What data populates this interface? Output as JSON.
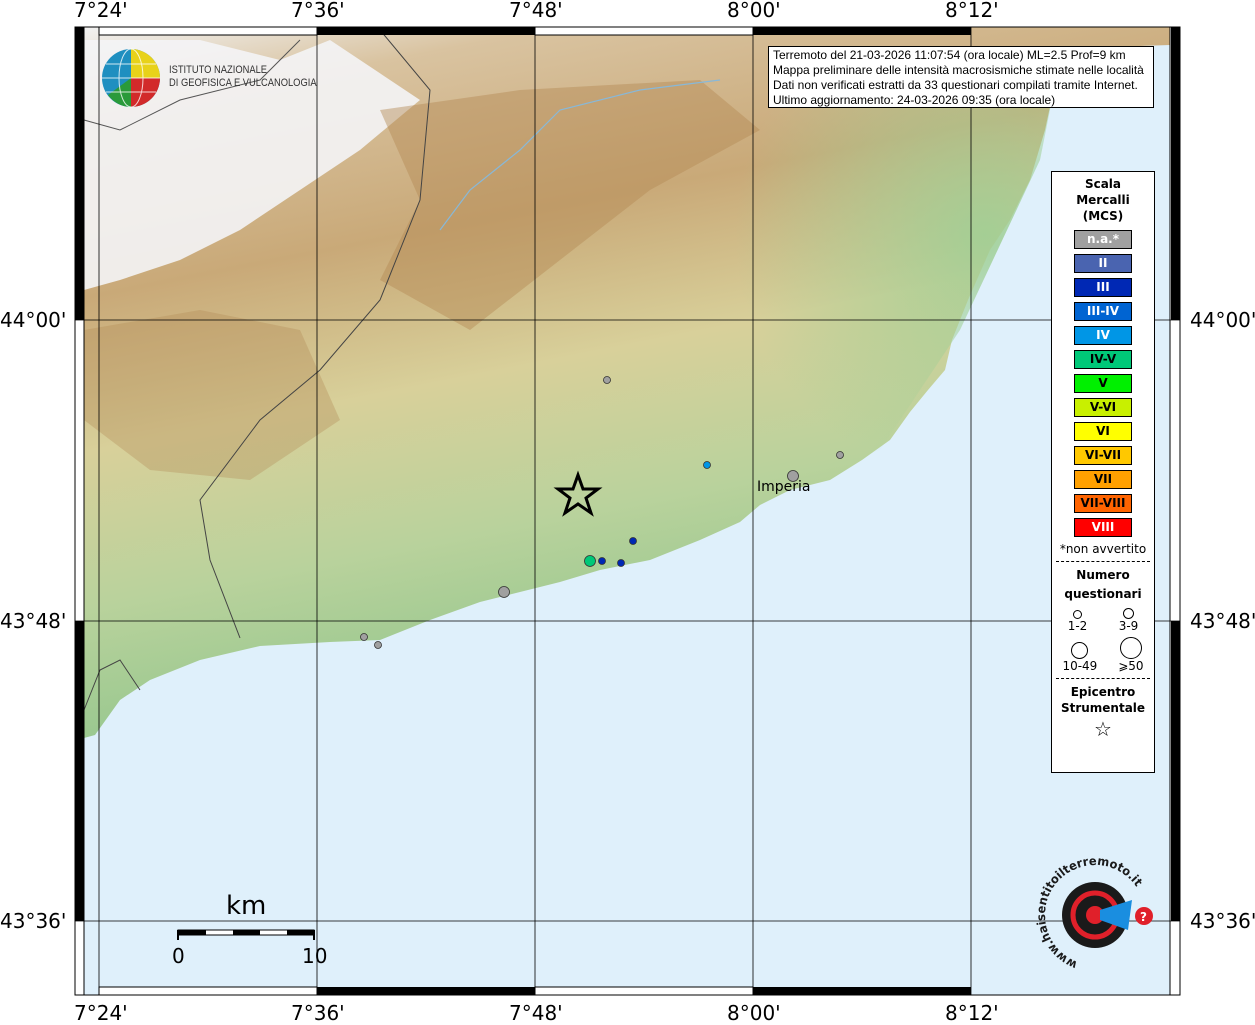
{
  "map": {
    "lon_ticks": [
      "7°24'",
      "7°36'",
      "7°48'",
      "8°00'",
      "8°12'"
    ],
    "lat_ticks": [
      "44°00'",
      "43°48'",
      "43°36'"
    ],
    "city_label": "Imperia"
  },
  "institute_logo": {
    "line1": "ISTITUTO NAZIONALE",
    "line2": "DI GEOFISICA E VULCANOLOGIA"
  },
  "info": {
    "line1": "Terremoto del 21-03-2026 11:07:54 (ora locale) ML=2.5 Prof=9 km",
    "line2": "Mappa preliminare delle intensità macrosismiche stimate nelle località",
    "line3": "Dati non verificati estratti da 33 questionari compilati tramite Internet.",
    "line4": "Ultimo aggiornamento: 24-03-2026 09:35 (ora locale)"
  },
  "legend": {
    "title1": "Scala",
    "title2": "Mercalli",
    "title3": "(MCS)",
    "classes": [
      {
        "label": "n.a.*",
        "color": "#a0a0a0",
        "text": "#ffffff"
      },
      {
        "label": "II",
        "color": "#4a64b0",
        "text": "#ffffff"
      },
      {
        "label": "III",
        "color": "#0028b4",
        "text": "#ffffff"
      },
      {
        "label": "III-IV",
        "color": "#0064d2",
        "text": "#ffffff"
      },
      {
        "label": "IV",
        "color": "#0096e6",
        "text": "#ffffff"
      },
      {
        "label": "IV-V",
        "color": "#00c878",
        "text": "#000000"
      },
      {
        "label": "V",
        "color": "#00f000",
        "text": "#000000"
      },
      {
        "label": "V-VI",
        "color": "#c8f000",
        "text": "#000000"
      },
      {
        "label": "VI",
        "color": "#ffff00",
        "text": "#000000"
      },
      {
        "label": "VI-VII",
        "color": "#ffc800",
        "text": "#000000"
      },
      {
        "label": "VII",
        "color": "#ffa000",
        "text": "#000000"
      },
      {
        "label": "VII-VIII",
        "color": "#ff6400",
        "text": "#000000"
      },
      {
        "label": "VIII",
        "color": "#ff0000",
        "text": "#ffffff"
      }
    ],
    "na_note": "*non avvertito",
    "count_title1": "Numero",
    "count_title2": "questionari",
    "sizes": [
      "1-2",
      "3-9",
      "10-49",
      "⩾50"
    ],
    "epi_title1": "Epicentro",
    "epi_title2": "Strumentale"
  },
  "scale_bar": {
    "unit": "km",
    "min": "0",
    "max": "10"
  },
  "sites": [
    {
      "intensity": "n.a.*",
      "size": "1-2"
    },
    {
      "intensity": "n.a.*",
      "size": "1-2"
    },
    {
      "intensity": "n.a.*",
      "size": "1-2"
    },
    {
      "intensity": "n.a.*",
      "size": "1-2"
    },
    {
      "intensity": "n.a.*",
      "size": "3-9"
    },
    {
      "intensity": "n.a.*",
      "size": "3-9"
    },
    {
      "intensity": "IV",
      "size": "1-2"
    },
    {
      "intensity": "IV-V",
      "size": "3-9"
    },
    {
      "intensity": "III",
      "size": "1-2"
    },
    {
      "intensity": "III",
      "size": "1-2"
    },
    {
      "intensity": "III",
      "size": "1-2"
    }
  ],
  "watermark": "www.haisentitoilterremoto.it"
}
